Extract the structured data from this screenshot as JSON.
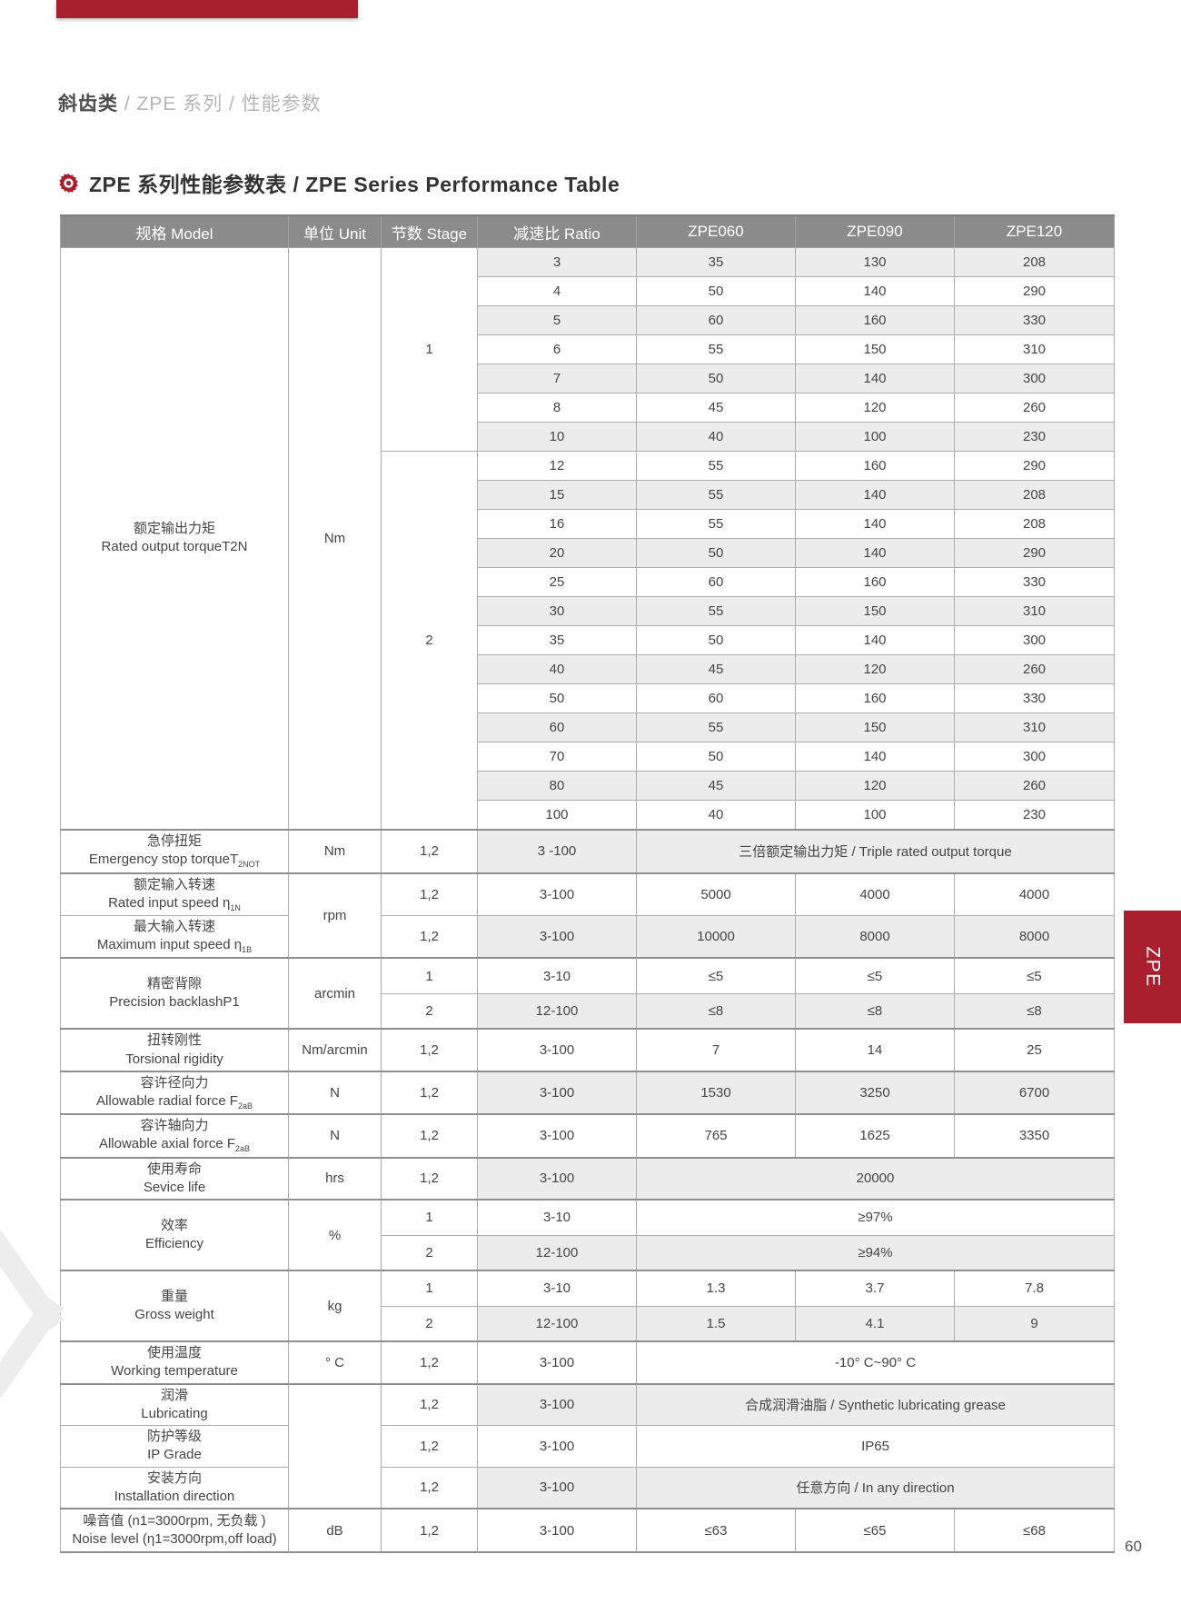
{
  "page": {
    "breadcrumb": {
      "bold": "斜齿类",
      "rest": " / ZPE 系列 / 性能参数"
    },
    "section_title": "ZPE 系列性能参数表 / ZPE Series Performance Table",
    "side_tab": "ZPE",
    "page_number": "60",
    "accent_color": "#a91f2e"
  },
  "table": {
    "headers": [
      "规格 Model",
      "单位 Unit",
      "节数 Stage",
      "减速比 Ratio",
      "ZPE060",
      "ZPE090",
      "ZPE120"
    ],
    "rated_output_torque": {
      "zh": "额定输出力矩",
      "en": "Rated output torqueT2N",
      "unit": "Nm",
      "stages": [
        {
          "stage": "1",
          "rows": [
            {
              "ratio": "3",
              "values": [
                "35",
                "130",
                "208"
              ]
            },
            {
              "ratio": "4",
              "values": [
                "50",
                "140",
                "290"
              ]
            },
            {
              "ratio": "5",
              "values": [
                "60",
                "160",
                "330"
              ]
            },
            {
              "ratio": "6",
              "values": [
                "55",
                "150",
                "310"
              ]
            },
            {
              "ratio": "7",
              "values": [
                "50",
                "140",
                "300"
              ]
            },
            {
              "ratio": "8",
              "values": [
                "45",
                "120",
                "260"
              ]
            },
            {
              "ratio": "10",
              "values": [
                "40",
                "100",
                "230"
              ]
            }
          ]
        },
        {
          "stage": "2",
          "rows": [
            {
              "ratio": "12",
              "values": [
                "55",
                "160",
                "290"
              ]
            },
            {
              "ratio": "15",
              "values": [
                "55",
                "140",
                "208"
              ]
            },
            {
              "ratio": "16",
              "values": [
                "55",
                "140",
                "208"
              ]
            },
            {
              "ratio": "20",
              "values": [
                "50",
                "140",
                "290"
              ]
            },
            {
              "ratio": "25",
              "values": [
                "60",
                "160",
                "330"
              ]
            },
            {
              "ratio": "30",
              "values": [
                "55",
                "150",
                "310"
              ]
            },
            {
              "ratio": "35",
              "values": [
                "50",
                "140",
                "300"
              ]
            },
            {
              "ratio": "40",
              "values": [
                "45",
                "120",
                "260"
              ]
            },
            {
              "ratio": "50",
              "values": [
                "60",
                "160",
                "330"
              ]
            },
            {
              "ratio": "60",
              "values": [
                "55",
                "150",
                "310"
              ]
            },
            {
              "ratio": "70",
              "values": [
                "50",
                "140",
                "300"
              ]
            },
            {
              "ratio": "80",
              "values": [
                "45",
                "120",
                "260"
              ]
            },
            {
              "ratio": "100",
              "values": [
                "40",
                "100",
                "230"
              ]
            }
          ]
        }
      ]
    },
    "param_blocks": [
      {
        "unit": "Nm",
        "groups": [
          {
            "zh": "急停扭矩",
            "en": "Emergency stop torqueT",
            "en_sub": "2NOT",
            "rows": [
              {
                "stage": "1,2",
                "ratio": "3 -100",
                "merged": "三倍额定输出力矩 / Triple rated output torque"
              }
            ]
          }
        ]
      },
      {
        "unit": "rpm",
        "groups": [
          {
            "zh": "额定输入转速",
            "en": "Rated input speed η",
            "en_sub": "1N",
            "rows": [
              {
                "stage": "1,2",
                "ratio": "3-100",
                "values": [
                  "5000",
                  "4000",
                  "4000"
                ]
              }
            ]
          },
          {
            "zh": "最大输入转速",
            "en": "Maximum input speed η",
            "en_sub": "1B",
            "rows": [
              {
                "stage": "1,2",
                "ratio": "3-100",
                "values": [
                  "10000",
                  "8000",
                  "8000"
                ]
              }
            ]
          }
        ]
      },
      {
        "unit": "arcmin",
        "groups": [
          {
            "zh": "精密背隙",
            "en": "Precision backlashP1",
            "rows": [
              {
                "stage": "1",
                "ratio": "3-10",
                "values": [
                  "≤5",
                  "≤5",
                  "≤5"
                ]
              },
              {
                "stage": "2",
                "ratio": "12-100",
                "values": [
                  "≤8",
                  "≤8",
                  "≤8"
                ]
              }
            ]
          }
        ]
      },
      {
        "unit": "Nm/arcmin",
        "groups": [
          {
            "zh": "扭转刚性",
            "en": "Torsional rigidity",
            "rows": [
              {
                "stage": "1,2",
                "ratio": "3-100",
                "values": [
                  "7",
                  "14",
                  "25"
                ]
              }
            ]
          }
        ]
      },
      {
        "unit": "N",
        "groups": [
          {
            "zh": "容许径向力",
            "en": "Allowable radial force F",
            "en_sub": "2aB",
            "rows": [
              {
                "stage": "1,2",
                "ratio": "3-100",
                "values": [
                  "1530",
                  "3250",
                  "6700"
                ]
              }
            ]
          }
        ]
      },
      {
        "unit": "N",
        "groups": [
          {
            "zh": "容许轴向力",
            "en": "Allowable axial force F",
            "en_sub": "2aB",
            "rows": [
              {
                "stage": "1,2",
                "ratio": "3-100",
                "values": [
                  "765",
                  "1625",
                  "3350"
                ]
              }
            ]
          }
        ]
      },
      {
        "unit": "hrs",
        "groups": [
          {
            "zh": "使用寿命",
            "en": "Sevice life",
            "rows": [
              {
                "stage": "1,2",
                "ratio": "3-100",
                "merged": "20000"
              }
            ]
          }
        ]
      },
      {
        "unit": "%",
        "groups": [
          {
            "zh": "效率",
            "en": "Efficiency",
            "rows": [
              {
                "stage": "1",
                "ratio": "3-10",
                "merged": "≥97%"
              },
              {
                "stage": "2",
                "ratio": "12-100",
                "merged": "≥94%"
              }
            ]
          }
        ]
      },
      {
        "unit": "kg",
        "groups": [
          {
            "zh": "重量",
            "en": "Gross weight",
            "rows": [
              {
                "stage": "1",
                "ratio": "3-10",
                "values": [
                  "1.3",
                  "3.7",
                  "7.8"
                ]
              },
              {
                "stage": "2",
                "ratio": "12-100",
                "values": [
                  "1.5",
                  "4.1",
                  "9"
                ]
              }
            ]
          }
        ]
      },
      {
        "unit": "° C",
        "groups": [
          {
            "zh": "使用温度",
            "en": "Working temperature",
            "rows": [
              {
                "stage": "1,2",
                "ratio": "3-100",
                "merged": "-10° C~90° C"
              }
            ]
          }
        ]
      },
      {
        "unit": "",
        "groups": [
          {
            "zh": "润滑",
            "en": "Lubricating",
            "rows": [
              {
                "stage": "1,2",
                "ratio": "3-100",
                "merged": "合成润滑油脂 / Synthetic lubricating grease"
              }
            ]
          },
          {
            "zh": "防护等级",
            "en": "IP Grade",
            "rows": [
              {
                "stage": "1,2",
                "ratio": "3-100",
                "merged": "IP65"
              }
            ]
          },
          {
            "zh": "安装方向",
            "en": "Installation direction",
            "rows": [
              {
                "stage": "1,2",
                "ratio": "3-100",
                "merged": "任意方向 / In any direction"
              }
            ]
          }
        ]
      },
      {
        "unit": "dB",
        "groups": [
          {
            "zh": "噪音值 (n1=3000rpm, 无负载 )",
            "en": "Noise level (η1=3000rpm,off load)",
            "rows": [
              {
                "stage": "1,2",
                "ratio": "3-100",
                "values": [
                  "≤63",
                  "≤65",
                  "≤68"
                ]
              }
            ]
          }
        ]
      }
    ]
  }
}
